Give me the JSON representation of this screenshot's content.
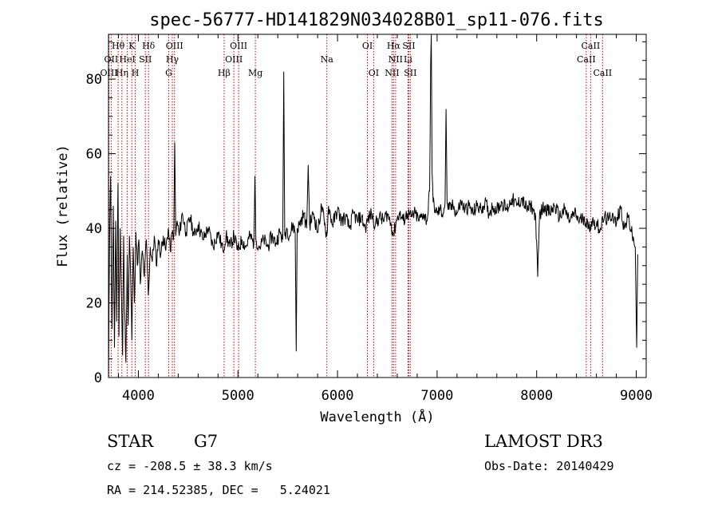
{
  "chart_data": {
    "type": "line",
    "title": "spec-56777-HD141829N034028B01_sp11-076.fits",
    "xlabel": "Wavelength (Å)",
    "ylabel": "Flux (relative)",
    "xlim": [
      3700,
      9100
    ],
    "ylim": [
      0,
      92
    ],
    "x_ticks": [
      4000,
      5000,
      6000,
      7000,
      8000,
      9000
    ],
    "y_ticks": [
      0,
      20,
      40,
      60,
      80
    ],
    "grid": false,
    "line_color": "#000000",
    "marker_color": "#cc0000",
    "spectral_lines": [
      {
        "label": "Hθ",
        "x": 3797,
        "row": 1
      },
      {
        "label": "OII",
        "x": 3727,
        "row": 2
      },
      {
        "label": "OIII",
        "x": 3704,
        "row": 3
      },
      {
        "label": "K",
        "x": 3934,
        "row": 1
      },
      {
        "label": "HeI",
        "x": 3889,
        "row": 2
      },
      {
        "label": "Hη",
        "x": 3835,
        "row": 3
      },
      {
        "label": "H",
        "x": 3969,
        "row": 3
      },
      {
        "label": "Hδ",
        "x": 4102,
        "row": 1
      },
      {
        "label": "SII",
        "x": 4070,
        "row": 2
      },
      {
        "label": "OIII",
        "x": 4363,
        "row": 1
      },
      {
        "label": "Hγ",
        "x": 4341,
        "row": 2
      },
      {
        "label": "G",
        "x": 4305,
        "row": 3
      },
      {
        "label": "OIII",
        "x": 5007,
        "row": 1
      },
      {
        "label": "OIII",
        "x": 4959,
        "row": 2
      },
      {
        "label": "Hβ",
        "x": 4861,
        "row": 3
      },
      {
        "label": "Mg",
        "x": 5175,
        "row": 3
      },
      {
        "label": "Na",
        "x": 5893,
        "row": 2
      },
      {
        "label": "OI",
        "x": 6300,
        "row": 1
      },
      {
        "label": "OI",
        "x": 6363,
        "row": 3
      },
      {
        "label": "Hα",
        "x": 6563,
        "row": 1
      },
      {
        "label": "NII",
        "x": 6583,
        "row": 2
      },
      {
        "label": "NII",
        "x": 6548,
        "row": 3
      },
      {
        "label": "SII",
        "x": 6716,
        "row": 1
      },
      {
        "label": "Li",
        "x": 6708,
        "row": 2
      },
      {
        "label": "SII",
        "x": 6731,
        "row": 3
      },
      {
        "label": "CaII",
        "x": 8542,
        "row": 1
      },
      {
        "label": "CaII",
        "x": 8498,
        "row": 2
      },
      {
        "label": "CaII",
        "x": 8662,
        "row": 3
      }
    ],
    "anchors": [
      [
        3700,
        1
      ],
      [
        3712,
        40
      ],
      [
        3722,
        54
      ],
      [
        3735,
        13
      ],
      [
        3748,
        46
      ],
      [
        3760,
        8
      ],
      [
        3772,
        42
      ],
      [
        3782,
        15
      ],
      [
        3795,
        52
      ],
      [
        3805,
        11
      ],
      [
        3818,
        40
      ],
      [
        3828,
        24
      ],
      [
        3842,
        6
      ],
      [
        3852,
        38
      ],
      [
        3862,
        18
      ],
      [
        3875,
        4
      ],
      [
        3888,
        33
      ],
      [
        3898,
        14
      ],
      [
        3910,
        38
      ],
      [
        3922,
        28
      ],
      [
        3935,
        10
      ],
      [
        3948,
        35
      ],
      [
        3960,
        20
      ],
      [
        3975,
        39
      ],
      [
        3990,
        30
      ],
      [
        4005,
        37
      ],
      [
        4020,
        25
      ],
      [
        4040,
        34
      ],
      [
        4060,
        27
      ],
      [
        4080,
        37
      ],
      [
        4100,
        22
      ],
      [
        4120,
        35
      ],
      [
        4140,
        31
      ],
      [
        4160,
        38
      ],
      [
        4180,
        30
      ],
      [
        4200,
        37
      ],
      [
        4225,
        33
      ],
      [
        4250,
        38
      ],
      [
        4275,
        34
      ],
      [
        4300,
        40
      ],
      [
        4320,
        34
      ],
      [
        4340,
        39
      ],
      [
        4355,
        38
      ],
      [
        4365,
        63
      ],
      [
        4375,
        38
      ],
      [
        4390,
        42
      ],
      [
        4410,
        38
      ],
      [
        4440,
        44
      ],
      [
        4480,
        39
      ],
      [
        4520,
        43
      ],
      [
        4560,
        38
      ],
      [
        4600,
        41
      ],
      [
        4650,
        37
      ],
      [
        4700,
        40
      ],
      [
        4750,
        35
      ],
      [
        4800,
        39
      ],
      [
        4850,
        34
      ],
      [
        4880,
        38
      ],
      [
        4920,
        35
      ],
      [
        4960,
        38
      ],
      [
        5000,
        34
      ],
      [
        5040,
        37
      ],
      [
        5080,
        35
      ],
      [
        5120,
        38
      ],
      [
        5160,
        36
      ],
      [
        5170,
        54
      ],
      [
        5180,
        37
      ],
      [
        5220,
        35
      ],
      [
        5260,
        37
      ],
      [
        5300,
        35
      ],
      [
        5340,
        38
      ],
      [
        5380,
        36
      ],
      [
        5420,
        39
      ],
      [
        5450,
        37
      ],
      [
        5460,
        82
      ],
      [
        5470,
        38
      ],
      [
        5490,
        40
      ],
      [
        5520,
        38
      ],
      [
        5550,
        41
      ],
      [
        5575,
        39
      ],
      [
        5585,
        7
      ],
      [
        5595,
        40
      ],
      [
        5620,
        41
      ],
      [
        5660,
        44
      ],
      [
        5690,
        40
      ],
      [
        5705,
        57
      ],
      [
        5720,
        41
      ],
      [
        5760,
        44
      ],
      [
        5800,
        39
      ],
      [
        5840,
        46
      ],
      [
        5870,
        41
      ],
      [
        5893,
        38
      ],
      [
        5910,
        46
      ],
      [
        5950,
        41
      ],
      [
        6000,
        45
      ],
      [
        6040,
        42
      ],
      [
        6080,
        43
      ],
      [
        6120,
        40
      ],
      [
        6160,
        44
      ],
      [
        6200,
        42
      ],
      [
        6240,
        43
      ],
      [
        6280,
        40
      ],
      [
        6300,
        42
      ],
      [
        6340,
        44
      ],
      [
        6380,
        41
      ],
      [
        6420,
        43
      ],
      [
        6460,
        42
      ],
      [
        6500,
        44
      ],
      [
        6540,
        41
      ],
      [
        6563,
        38
      ],
      [
        6590,
        42
      ],
      [
        6620,
        44
      ],
      [
        6660,
        42
      ],
      [
        6700,
        44
      ],
      [
        6740,
        43
      ],
      [
        6780,
        44
      ],
      [
        6820,
        42
      ],
      [
        6860,
        44
      ],
      [
        6900,
        42
      ],
      [
        6925,
        50
      ],
      [
        6935,
        84
      ],
      [
        6942,
        94
      ],
      [
        6950,
        55
      ],
      [
        6960,
        47
      ],
      [
        6980,
        45
      ],
      [
        7000,
        44
      ],
      [
        7030,
        45
      ],
      [
        7060,
        44
      ],
      [
        7080,
        47
      ],
      [
        7090,
        72
      ],
      [
        7100,
        47
      ],
      [
        7120,
        45
      ],
      [
        7160,
        46
      ],
      [
        7200,
        44
      ],
      [
        7240,
        47
      ],
      [
        7280,
        45
      ],
      [
        7320,
        46
      ],
      [
        7360,
        44
      ],
      [
        7400,
        46
      ],
      [
        7440,
        45
      ],
      [
        7480,
        47
      ],
      [
        7520,
        44
      ],
      [
        7560,
        46
      ],
      [
        7600,
        45
      ],
      [
        7650,
        47
      ],
      [
        7700,
        45
      ],
      [
        7750,
        48
      ],
      [
        7800,
        46
      ],
      [
        7850,
        48
      ],
      [
        7900,
        45
      ],
      [
        7950,
        46
      ],
      [
        7990,
        43
      ],
      [
        8010,
        27
      ],
      [
        8030,
        44
      ],
      [
        8080,
        46
      ],
      [
        8130,
        44
      ],
      [
        8180,
        46
      ],
      [
        8230,
        43
      ],
      [
        8280,
        45
      ],
      [
        8330,
        42
      ],
      [
        8380,
        44
      ],
      [
        8430,
        42
      ],
      [
        8480,
        43
      ],
      [
        8520,
        40
      ],
      [
        8560,
        42
      ],
      [
        8600,
        41
      ],
      [
        8640,
        40
      ],
      [
        8680,
        43
      ],
      [
        8720,
        42
      ],
      [
        8760,
        44
      ],
      [
        8800,
        41
      ],
      [
        8840,
        46
      ],
      [
        8880,
        40
      ],
      [
        8920,
        43
      ],
      [
        8960,
        38
      ],
      [
        8990,
        35
      ],
      [
        9005,
        8
      ],
      [
        9015,
        33
      ]
    ]
  },
  "footer": {
    "object_type": "STAR",
    "subclass": "G7",
    "survey": "LAMOST DR3",
    "cz_text": "cz = -208.5 ± 38.3 km/s",
    "obs_date": "Obs-Date: 20140429",
    "coords": "RA = 214.52385, DEC =   5.24021"
  }
}
